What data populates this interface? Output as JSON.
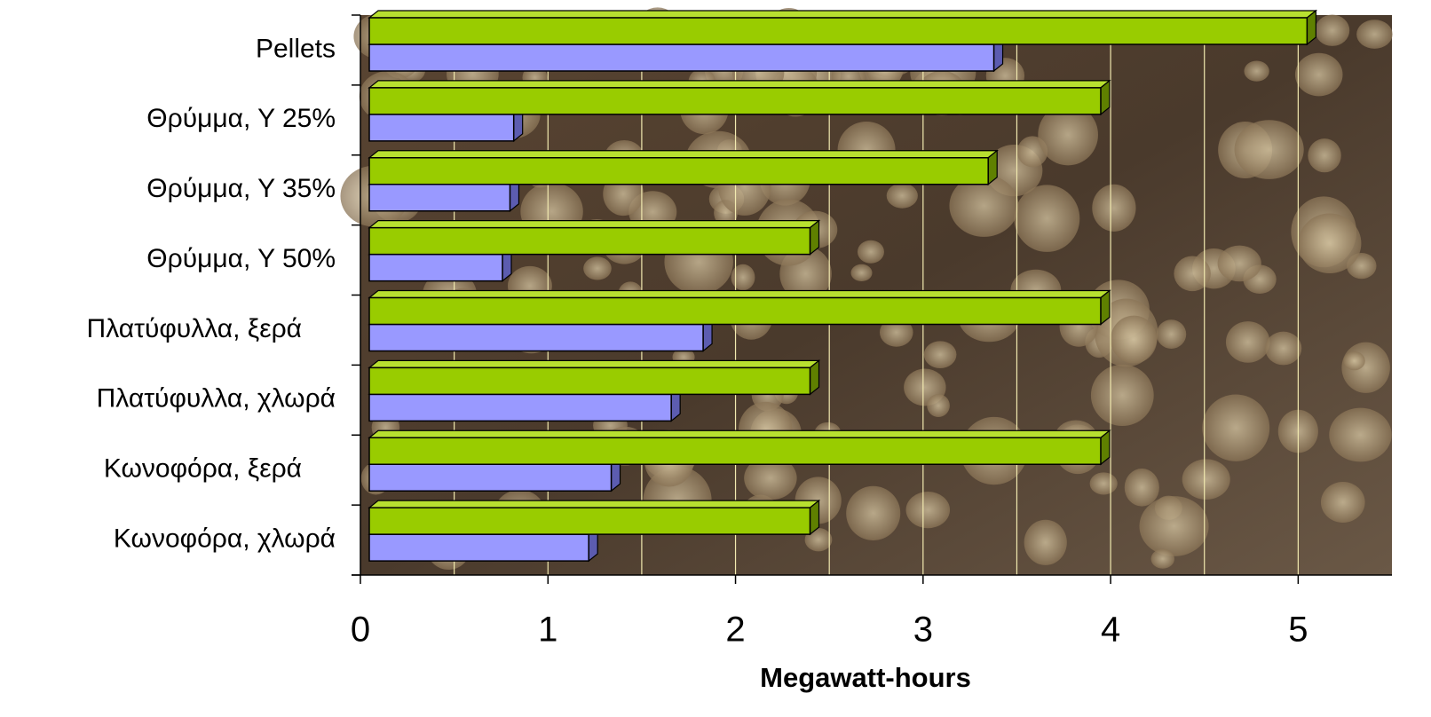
{
  "chart_data": {
    "type": "bar3d_horizontal",
    "x_label": "Megawatt-hours",
    "categories": [
      "Pellets",
      "Θρύμμα, Υ 25%",
      "Θρύμμα, Υ 35%",
      "Θρύμμα, Υ 50%",
      "Πλατύφυλλα, ξερά",
      "Πλατύφυλλα, χλωρά",
      "Κωνοφόρα, ξερά",
      "Κωνοφόρα, χλωρά"
    ],
    "series": [
      {
        "color": "#99cc00",
        "values": [
          5.0,
          3.9,
          3.3,
          2.35,
          3.9,
          2.35,
          3.9,
          2.35
        ]
      },
      {
        "color": "#9999ff",
        "values": [
          3.33,
          0.77,
          0.75,
          0.71,
          1.78,
          1.61,
          1.29,
          1.17
        ]
      }
    ],
    "xlim": [
      0,
      5.5
    ],
    "xticks": [
      0,
      1,
      2,
      3,
      4,
      5
    ],
    "xgrid": [
      0.5,
      1,
      1.5,
      2,
      2.5,
      3,
      3.5,
      4,
      4.5,
      5
    ],
    "grid": true
  }
}
